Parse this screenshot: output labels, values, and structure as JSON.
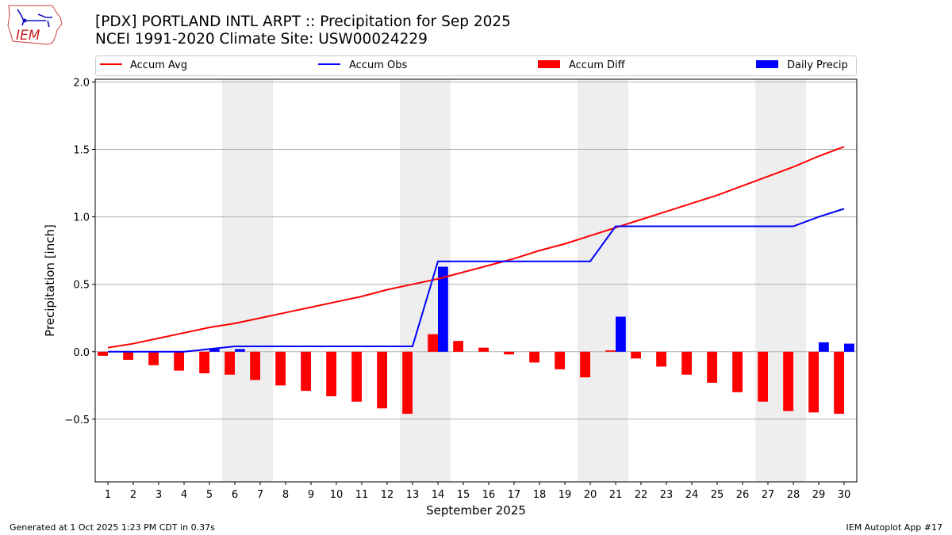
{
  "header": {
    "title_line1": "[PDX] PORTLAND INTL ARPT :: Precipitation for Sep 2025",
    "title_line2": "NCEI 1991-2020 Climate Site: USW00024229",
    "logo_text": "IEM"
  },
  "footer": {
    "left": "Generated at 1 Oct 2025 1:23 PM CDT in 0.37s",
    "right": "IEM Autoplot App #17"
  },
  "chart_data": {
    "type": "bar+line",
    "xlabel": "September 2025",
    "ylabel": "Precipitation [inch]",
    "xlim": [
      0.5,
      30.5
    ],
    "ylim": [
      -0.965,
      2.02
    ],
    "yticks": [
      -0.5,
      0.0,
      0.5,
      1.0,
      1.5,
      2.0
    ],
    "ytick_labels": [
      "−0.5",
      "0.0",
      "0.5",
      "1.0",
      "1.5",
      "2.0"
    ],
    "grid": "y",
    "legend_position": "top",
    "x": [
      1,
      2,
      3,
      4,
      5,
      6,
      7,
      8,
      9,
      10,
      11,
      12,
      13,
      14,
      15,
      16,
      17,
      18,
      19,
      20,
      21,
      22,
      23,
      24,
      25,
      26,
      27,
      28,
      29,
      30
    ],
    "weekend_shading": [
      [
        6,
        7
      ],
      [
        13,
        14
      ],
      [
        20,
        21
      ],
      [
        27,
        28
      ]
    ],
    "colors": {
      "avg": "#ff0000",
      "obs": "#0000ff",
      "diff": "#ff0000",
      "daily": "#0000ff",
      "shade": "#eeeeee"
    },
    "series": [
      {
        "name": "Accum Avg",
        "kind": "line",
        "values": [
          0.03,
          0.06,
          0.1,
          0.14,
          0.18,
          0.21,
          0.25,
          0.29,
          0.33,
          0.37,
          0.41,
          0.46,
          0.5,
          0.54,
          0.59,
          0.64,
          0.69,
          0.75,
          0.8,
          0.86,
          0.92,
          0.98,
          1.04,
          1.1,
          1.16,
          1.23,
          1.3,
          1.37,
          1.45,
          1.52
        ]
      },
      {
        "name": "Accum Obs",
        "kind": "line",
        "values": [
          0,
          0,
          0,
          0,
          0.02,
          0.04,
          0.04,
          0.04,
          0.04,
          0.04,
          0.04,
          0.04,
          0.04,
          0.67,
          0.67,
          0.67,
          0.67,
          0.67,
          0.67,
          0.67,
          0.93,
          0.93,
          0.93,
          0.93,
          0.93,
          0.93,
          0.93,
          0.93,
          1.0,
          1.06
        ]
      },
      {
        "name": "Accum Diff",
        "kind": "bar",
        "values": [
          -0.03,
          -0.06,
          -0.1,
          -0.14,
          -0.16,
          -0.17,
          -0.21,
          -0.25,
          -0.29,
          -0.33,
          -0.37,
          -0.42,
          -0.46,
          0.13,
          0.08,
          0.03,
          -0.02,
          -0.08,
          -0.13,
          -0.19,
          0.01,
          -0.05,
          -0.11,
          -0.17,
          -0.23,
          -0.3,
          -0.37,
          -0.44,
          -0.45,
          -0.46
        ]
      },
      {
        "name": "Daily Precip",
        "kind": "bar",
        "values": [
          0,
          0,
          0,
          0,
          0.02,
          0.02,
          0,
          0,
          0,
          0,
          0,
          0,
          0,
          0.63,
          0,
          0,
          0,
          0,
          0,
          0,
          0.26,
          0,
          0,
          0,
          0,
          0,
          0,
          0,
          0.07,
          0.06
        ]
      }
    ]
  }
}
